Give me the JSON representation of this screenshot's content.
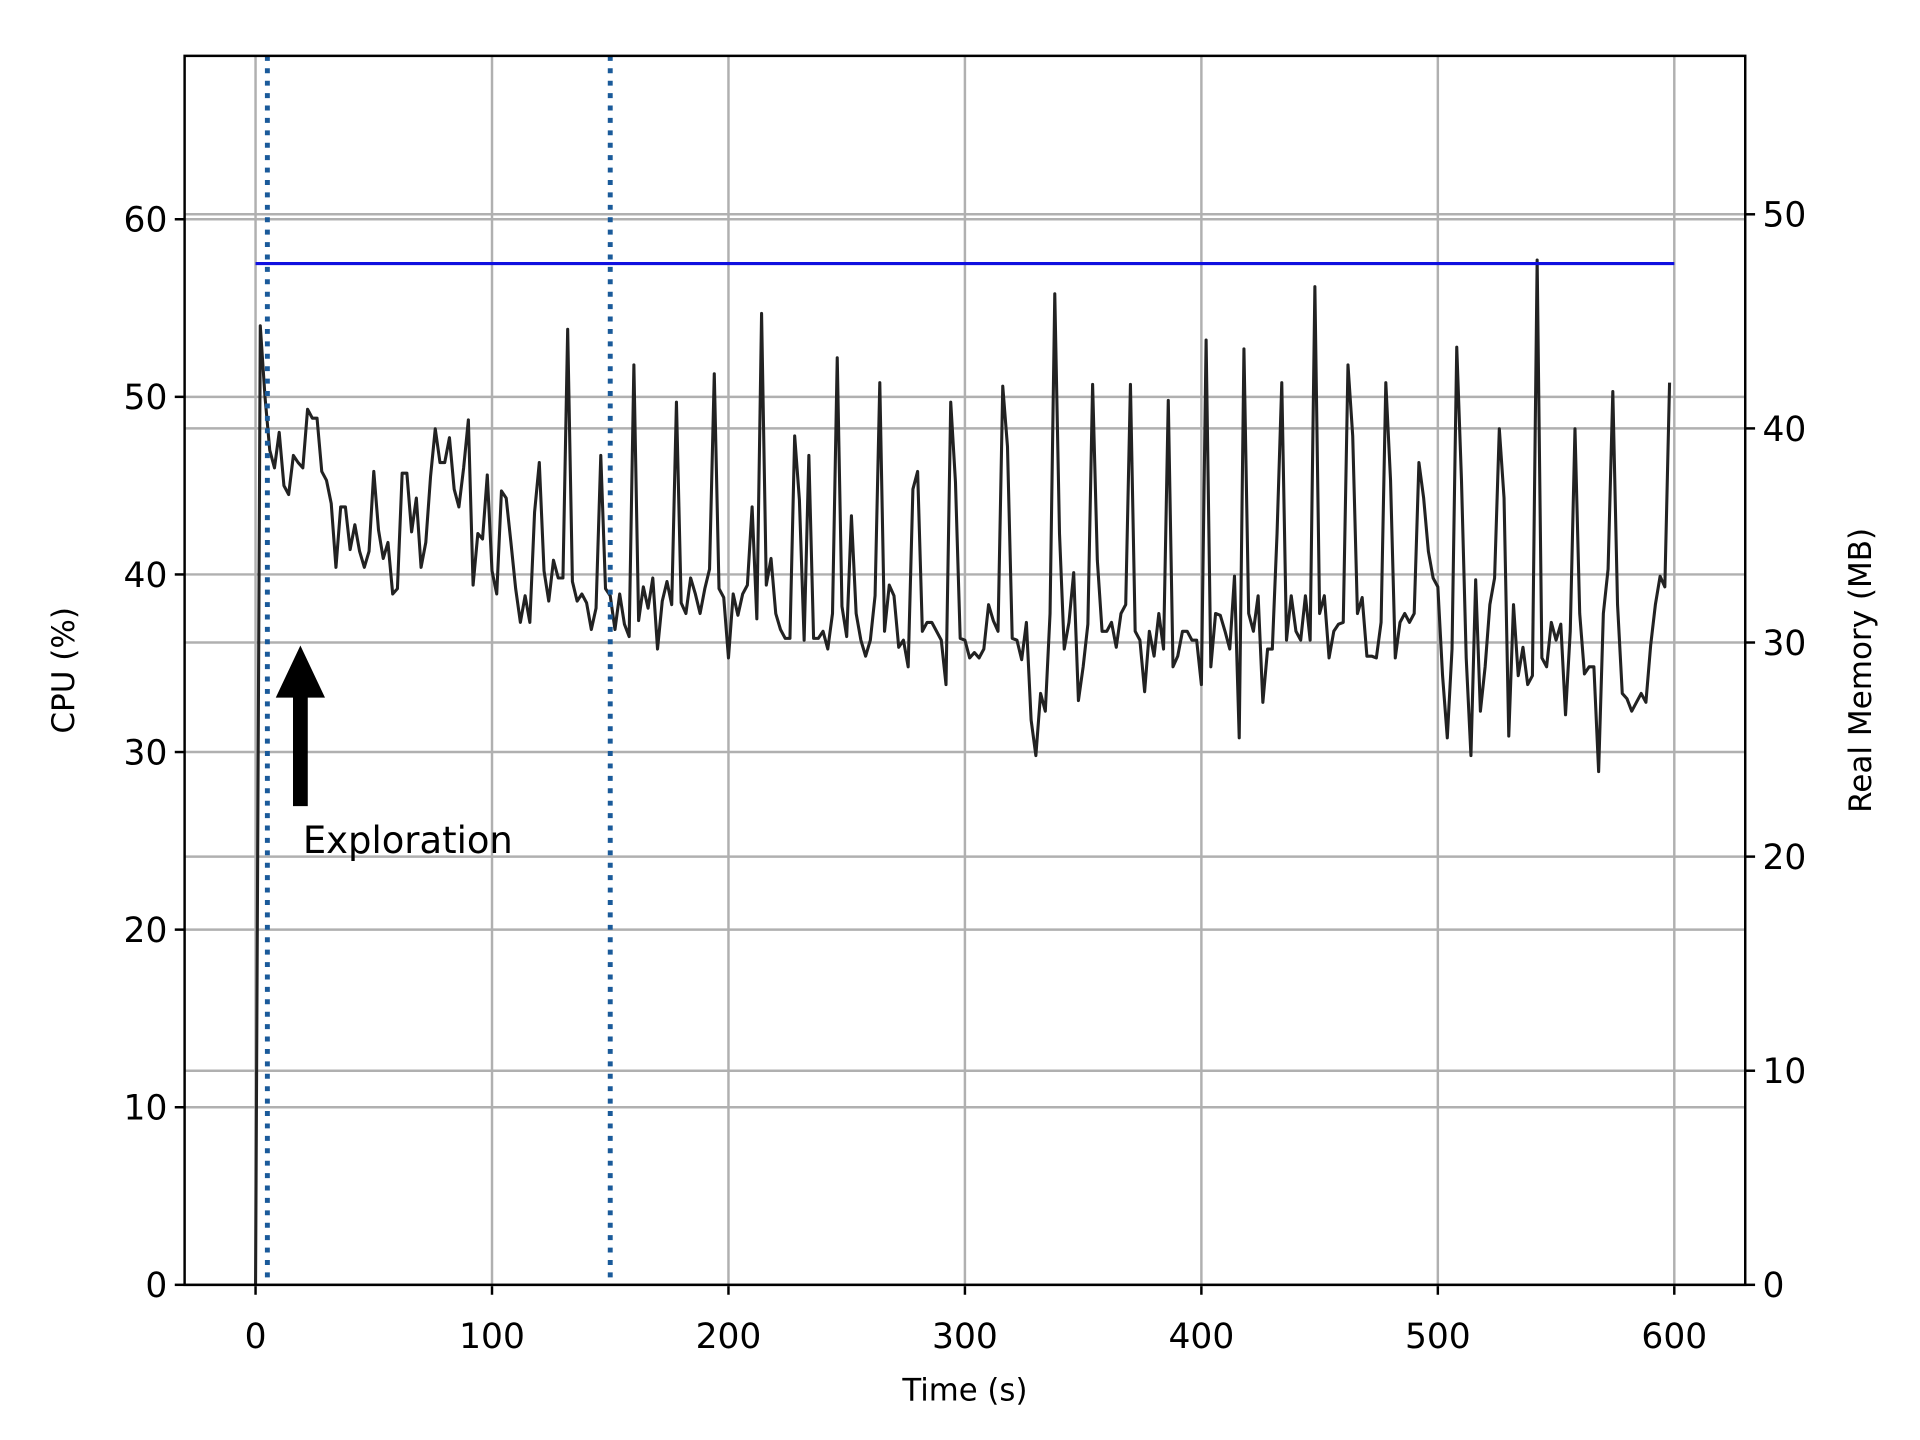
{
  "chart_data": {
    "type": "line",
    "xlabel": "Time (s)",
    "ylabel": "CPU (%)",
    "y2label": "Real Memory (MB)",
    "xlim": [
      -30,
      630
    ],
    "ylim": [
      0,
      69.2
    ],
    "y2lim": [
      0,
      57.4
    ],
    "xticks": [
      0,
      100,
      200,
      300,
      400,
      500,
      600
    ],
    "yticks": [
      0,
      10,
      20,
      30,
      40,
      50,
      60
    ],
    "y2ticks": [
      0,
      10,
      20,
      30,
      40,
      50
    ],
    "grid": true,
    "ylabel_color": "#008000",
    "y2label_color": "#0000ff",
    "vlines": {
      "x": [
        5,
        150
      ],
      "color": "#1a5a9a"
    },
    "annotations": [
      {
        "text": "Exploration",
        "xy": [
          20,
          36
        ],
        "xytext": [
          20,
          25
        ]
      }
    ],
    "series": [
      {
        "name": "CPU",
        "color": "#222222",
        "axis": "y",
        "x": [
          0,
          2,
          4,
          6,
          8,
          10,
          12,
          14,
          16,
          18,
          20,
          22,
          24,
          26,
          28,
          30,
          32,
          34,
          36,
          38,
          40,
          42,
          44,
          46,
          48,
          50,
          52,
          54,
          56,
          58,
          60,
          62,
          64,
          66,
          68,
          70,
          72,
          74,
          76,
          78,
          80,
          82,
          84,
          86,
          88,
          90,
          92,
          94,
          96,
          98,
          100,
          102,
          104,
          106,
          108,
          110,
          112,
          114,
          116,
          118,
          120,
          122,
          124,
          126,
          128,
          130,
          132,
          134,
          136,
          138,
          140,
          142,
          144,
          146,
          148,
          150,
          152,
          154,
          156,
          158,
          160,
          162,
          164,
          166,
          168,
          170,
          172,
          174,
          176,
          178,
          180,
          182,
          184,
          186,
          188,
          190,
          192,
          194,
          196,
          198,
          200,
          202,
          204,
          206,
          208,
          210,
          212,
          214,
          216,
          218,
          220,
          222,
          224,
          226,
          228,
          230,
          232,
          234,
          236,
          238,
          240,
          242,
          244,
          246,
          248,
          250,
          252,
          254,
          256,
          258,
          260,
          262,
          264,
          266,
          268,
          270,
          272,
          274,
          276,
          278,
          280,
          282,
          284,
          286,
          288,
          290,
          292,
          294,
          296,
          298,
          300,
          302,
          304,
          306,
          308,
          310,
          312,
          314,
          316,
          318,
          320,
          322,
          324,
          326,
          328,
          330,
          332,
          334,
          336,
          338,
          340,
          342,
          344,
          346,
          348,
          350,
          352,
          354,
          356,
          358,
          360,
          362,
          364,
          366,
          368,
          370,
          372,
          374,
          376,
          378,
          380,
          382,
          384,
          386,
          388,
          390,
          392,
          394,
          396,
          398,
          400,
          402,
          404,
          406,
          408,
          410,
          412,
          414,
          416,
          418,
          420,
          422,
          424,
          426,
          428,
          430,
          432,
          434,
          436,
          438,
          440,
          442,
          444,
          446,
          448,
          450,
          452,
          454,
          456,
          458,
          460,
          462,
          464,
          466,
          468,
          470,
          472,
          474,
          476,
          478,
          480,
          482,
          484,
          486,
          488,
          490,
          492,
          494,
          496,
          498,
          500,
          502,
          504,
          506,
          508,
          510,
          512,
          514,
          516,
          518,
          520,
          522,
          524,
          526,
          528,
          530,
          532,
          534,
          536,
          538,
          540,
          542,
          544,
          546,
          548,
          550,
          552,
          554,
          556,
          558,
          560,
          562,
          564,
          566,
          568,
          570,
          572,
          574,
          576,
          578,
          580,
          582,
          584,
          586,
          588,
          590,
          592,
          594,
          596,
          598
        ],
        "values": [
          0,
          54,
          50,
          47,
          46,
          48,
          45,
          44.5,
          46.7,
          46.3,
          46,
          49.3,
          48.8,
          48.8,
          45.8,
          45.3,
          44,
          40.4,
          43.8,
          43.8,
          41.4,
          42.8,
          41.3,
          40.4,
          41.3,
          45.8,
          42.5,
          40.9,
          41.8,
          38.9,
          39.2,
          45.7,
          45.7,
          42.4,
          44.3,
          40.4,
          41.8,
          45.5,
          48.2,
          46.3,
          46.3,
          47.7,
          44.8,
          43.8,
          46,
          48.7,
          39.4,
          42.3,
          42,
          45.6,
          40.2,
          38.9,
          44.7,
          44.3,
          41.8,
          39.2,
          37.3,
          38.8,
          37.3,
          43.5,
          46.3,
          40.2,
          38.5,
          40.8,
          39.8,
          39.8,
          53.8,
          39.6,
          38.5,
          38.9,
          38.4,
          36.9,
          38.1,
          46.7,
          39.2,
          38.8,
          36.9,
          38.9,
          37.2,
          36.5,
          51.8,
          37.4,
          39.3,
          38.1,
          39.8,
          35.8,
          38.5,
          39.6,
          38.3,
          49.7,
          38.4,
          37.8,
          39.8,
          38.9,
          37.8,
          39.2,
          40.3,
          51.3,
          39.2,
          38.7,
          35.3,
          38.9,
          37.7,
          38.9,
          39.4,
          43.8,
          37.5,
          54.7,
          39.4,
          40.9,
          37.8,
          36.9,
          36.4,
          36.4,
          47.8,
          44.2,
          36.3,
          46.7,
          36.4,
          36.4,
          36.8,
          35.8,
          37.8,
          52.2,
          38.2,
          36.5,
          43.3,
          37.8,
          36.3,
          35.4,
          36.3,
          38.8,
          50.8,
          36.8,
          39.4,
          38.8,
          35.9,
          36.3,
          34.8,
          44.8,
          45.8,
          36.8,
          37.3,
          37.3,
          36.8,
          36.3,
          33.8,
          49.7,
          45.2,
          36.4,
          36.3,
          35.3,
          35.6,
          35.3,
          35.8,
          38.3,
          37.4,
          36.8,
          50.6,
          47.2,
          36.4,
          36.3,
          35.2,
          37.3,
          31.8,
          29.8,
          33.3,
          32.3,
          37.8,
          55.8,
          42.3,
          35.8,
          37.3,
          40.1,
          32.9,
          34.8,
          37.2,
          50.7,
          40.8,
          36.8,
          36.8,
          37.3,
          35.9,
          37.8,
          38.3,
          50.7,
          36.8,
          36.3,
          33.4,
          36.8,
          35.4,
          37.8,
          35.8,
          49.8,
          34.8,
          35.4,
          36.8,
          36.8,
          36.3,
          36.3,
          33.8,
          53.2,
          34.8,
          37.8,
          37.7,
          36.8,
          35.8,
          39.9,
          30.8,
          52.7,
          37.8,
          36.8,
          38.8,
          32.8,
          35.8,
          35.8,
          42.3,
          50.8,
          36.3,
          38.8,
          36.8,
          36.3,
          38.8,
          36.3,
          56.2,
          37.8,
          38.8,
          35.3,
          36.8,
          37.2,
          37.3,
          51.8,
          47.8,
          37.8,
          38.7,
          35.4,
          35.4,
          35.3,
          37.3,
          50.8,
          45.3,
          35.3,
          37.3,
          37.8,
          37.3,
          37.8,
          46.3,
          44.3,
          41.3,
          39.8,
          39.3,
          34.3,
          30.8,
          35.8,
          52.8,
          45.3,
          35.3,
          29.8,
          39.7,
          32.3,
          34.8,
          38.3,
          39.8,
          48.2,
          44.3,
          30.9,
          38.3,
          34.3,
          35.9,
          33.8,
          34.3,
          57.7,
          35.3,
          34.8,
          37.3,
          36.3,
          37.2,
          32.1,
          36.8,
          48.2,
          37.8,
          34.4,
          34.8,
          34.8,
          28.9,
          37.8,
          40.3,
          50.3,
          38.3,
          33.3,
          33,
          32.3,
          32.8,
          33.3,
          32.8,
          36,
          38.3,
          39.9,
          39.3,
          50.8
        ]
      },
      {
        "name": "Real Memory",
        "color": "#1010e0",
        "axis": "y2",
        "x": [
          0,
          600
        ],
        "values": [
          47.7,
          47.7
        ]
      }
    ]
  }
}
